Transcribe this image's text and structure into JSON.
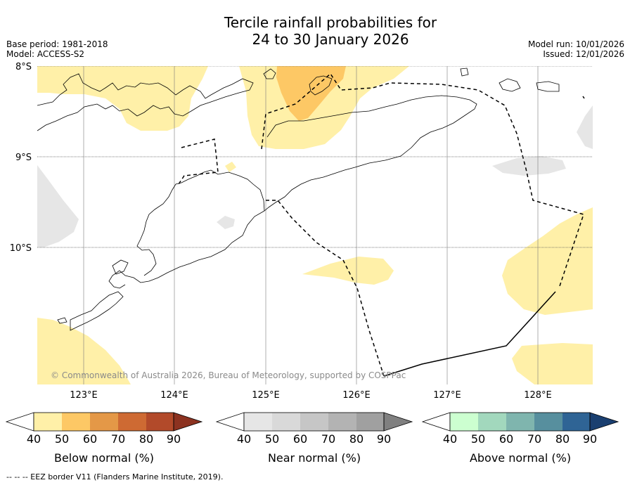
{
  "title_line1": "Tercile rainfall probabilities for",
  "title_line2": "24 to 30 January 2026",
  "meta_left": {
    "base_period": "Base period: 1981-2018",
    "model": "Model: ACCESS-S2"
  },
  "meta_right": {
    "model_run": "Model run: 10/01/2026",
    "issued": "Issued: 12/01/2026"
  },
  "lat_labels": [
    "8°S",
    "9°S",
    "10°S"
  ],
  "lon_labels": [
    "123°E",
    "124°E",
    "125°E",
    "126°E",
    "127°E",
    "128°E"
  ],
  "credit": "© Commonwealth of Australia 2026, Bureau of Meteorology, supported by COSPPac",
  "colorbars": [
    {
      "label": "Below normal (%)",
      "ticks": [
        "40",
        "50",
        "60",
        "70",
        "80",
        "90"
      ],
      "colors": [
        "#fff0a8",
        "#fdc865",
        "#e49847",
        "#ce6a33",
        "#b24a2a",
        "#8c3220"
      ]
    },
    {
      "label": "Near normal (%)",
      "ticks": [
        "40",
        "50",
        "60",
        "70",
        "80",
        "90"
      ],
      "colors": [
        "#e6e6e6",
        "#d9d9d9",
        "#c6c6c6",
        "#b3b3b3",
        "#a0a0a0",
        "#808080"
      ]
    },
    {
      "label": "Above normal (%)",
      "ticks": [
        "40",
        "50",
        "60",
        "70",
        "80",
        "90"
      ],
      "colors": [
        "#ccffd0",
        "#a2d8bd",
        "#7fb5ae",
        "#578f9e",
        "#2f6495",
        "#1a3f70"
      ]
    }
  ],
  "footer": "--  --  -- EEZ border V11 (Flanders Marine Institute, 2019)."
}
